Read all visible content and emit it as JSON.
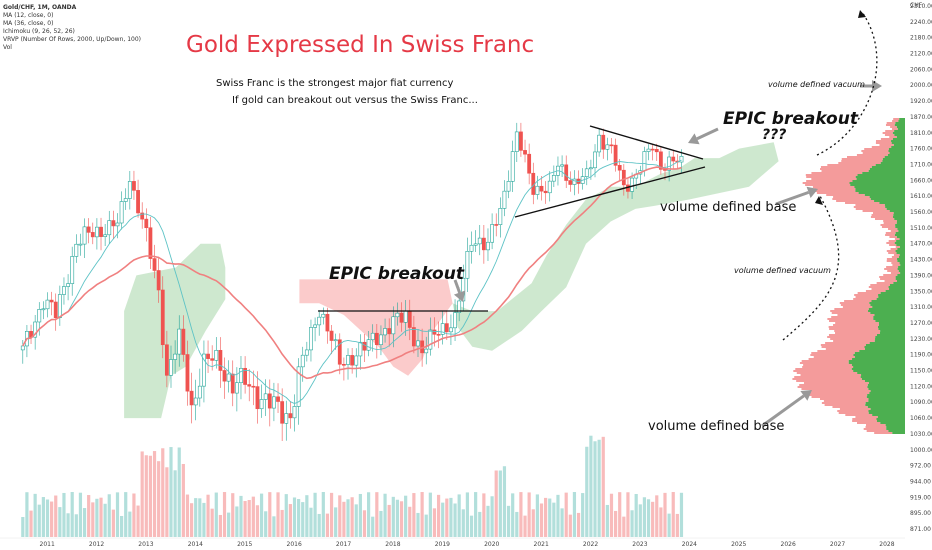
{
  "header": {
    "symbol": "Gold/CHF, 1M, OANDA",
    "indicators": [
      "MA (12, close, 0)",
      "MA (36, close, 0)",
      "Ichimoku (9, 26, 52, 26)",
      "VRVP (Number Of Rows, 2000, Up/Down, 100)",
      "Vol"
    ]
  },
  "annotations": {
    "title": "Gold Expressed In Swiss Franc",
    "note1": "Swiss Franc is the strongest major fiat currency",
    "note2": "If gold can breakout out versus the Swiss Franc...",
    "epic_top": "EPIC breakout",
    "epic_top_q": "???",
    "epic_mid": "EPIC breakout",
    "vdb_top": "volume defined base",
    "vdb_bottom": "volume defined base",
    "vdv_top": "volume defined vacuum",
    "vdv_mid": "volume defined vacuum"
  },
  "colors": {
    "up": "#26a69a",
    "down": "#ef5350",
    "ma12": "#5ec3c6",
    "ma36": "#f08080",
    "cloud_green": "#a5d6a7",
    "cloud_red": "#f7a1a1",
    "title": "#e53946"
  },
  "chart_data": {
    "type": "candlestick",
    "currency_label": "CHF",
    "x_ticks": [
      "2011",
      "2012",
      "2013",
      "2014",
      "2015",
      "2016",
      "2017",
      "2018",
      "2019",
      "2020",
      "2021",
      "2022",
      "2023",
      "2024",
      "2025",
      "2026",
      "2027",
      "2028"
    ],
    "y_ticks": [
      871.0,
      895.0,
      919.0,
      944.0,
      972.0,
      1000.0,
      1030.0,
      1060.0,
      1090.0,
      1120.0,
      1150.0,
      1190.0,
      1230.0,
      1270.0,
      1310.0,
      1350.0,
      1390.0,
      1430.0,
      1470.0,
      1510.0,
      1560.0,
      1610.0,
      1660.0,
      1710.0,
      1760.0,
      1810.0,
      1870.0,
      1920.0,
      2000.0,
      2060.0,
      2120.0,
      2180.0,
      2240.0,
      2310.0
    ],
    "monthly_close_keypoints": [
      {
        "date": "2010-07",
        "value": 1200
      },
      {
        "date": "2010-12",
        "value": 1330
      },
      {
        "date": "2011-03",
        "value": 1290
      },
      {
        "date": "2011-08",
        "value": 1470
      },
      {
        "date": "2011-12",
        "value": 1500
      },
      {
        "date": "2012-06",
        "value": 1520
      },
      {
        "date": "2012-09",
        "value": 1670
      },
      {
        "date": "2012-12",
        "value": 1530
      },
      {
        "date": "2013-04",
        "value": 1350
      },
      {
        "date": "2013-06",
        "value": 1140
      },
      {
        "date": "2013-09",
        "value": 1230
      },
      {
        "date": "2013-12",
        "value": 1080
      },
      {
        "date": "2014-03",
        "value": 1170
      },
      {
        "date": "2014-06",
        "value": 1180
      },
      {
        "date": "2014-10",
        "value": 1120
      },
      {
        "date": "2015-01",
        "value": 1130
      },
      {
        "date": "2015-06",
        "value": 1090
      },
      {
        "date": "2015-12",
        "value": 1065
      },
      {
        "date": "2016-03",
        "value": 1175
      },
      {
        "date": "2016-07",
        "value": 1310
      },
      {
        "date": "2016-12",
        "value": 1170
      },
      {
        "date": "2017-06",
        "value": 1205
      },
      {
        "date": "2017-09",
        "value": 1240
      },
      {
        "date": "2017-12",
        "value": 1260
      },
      {
        "date": "2018-04",
        "value": 1290
      },
      {
        "date": "2018-08",
        "value": 1190
      },
      {
        "date": "2018-12",
        "value": 1260
      },
      {
        "date": "2019-04",
        "value": 1270
      },
      {
        "date": "2019-08",
        "value": 1490
      },
      {
        "date": "2019-12",
        "value": 1460
      },
      {
        "date": "2020-03",
        "value": 1570
      },
      {
        "date": "2020-07",
        "value": 1800
      },
      {
        "date": "2020-11",
        "value": 1640
      },
      {
        "date": "2021-03",
        "value": 1630
      },
      {
        "date": "2021-05",
        "value": 1710
      },
      {
        "date": "2021-09",
        "value": 1650
      },
      {
        "date": "2021-12",
        "value": 1670
      },
      {
        "date": "2022-03",
        "value": 1800
      },
      {
        "date": "2022-06",
        "value": 1750
      },
      {
        "date": "2022-09",
        "value": 1640
      },
      {
        "date": "2022-12",
        "value": 1680
      },
      {
        "date": "2023-04",
        "value": 1770
      },
      {
        "date": "2023-06",
        "value": 1710
      },
      {
        "date": "2023-09",
        "value": 1720
      },
      {
        "date": "2023-11",
        "value": 1710
      }
    ],
    "volume_profile": {
      "base_levels": [
        1170,
        1640
      ],
      "vacuum_levels": [
        1420,
        2030
      ]
    }
  }
}
